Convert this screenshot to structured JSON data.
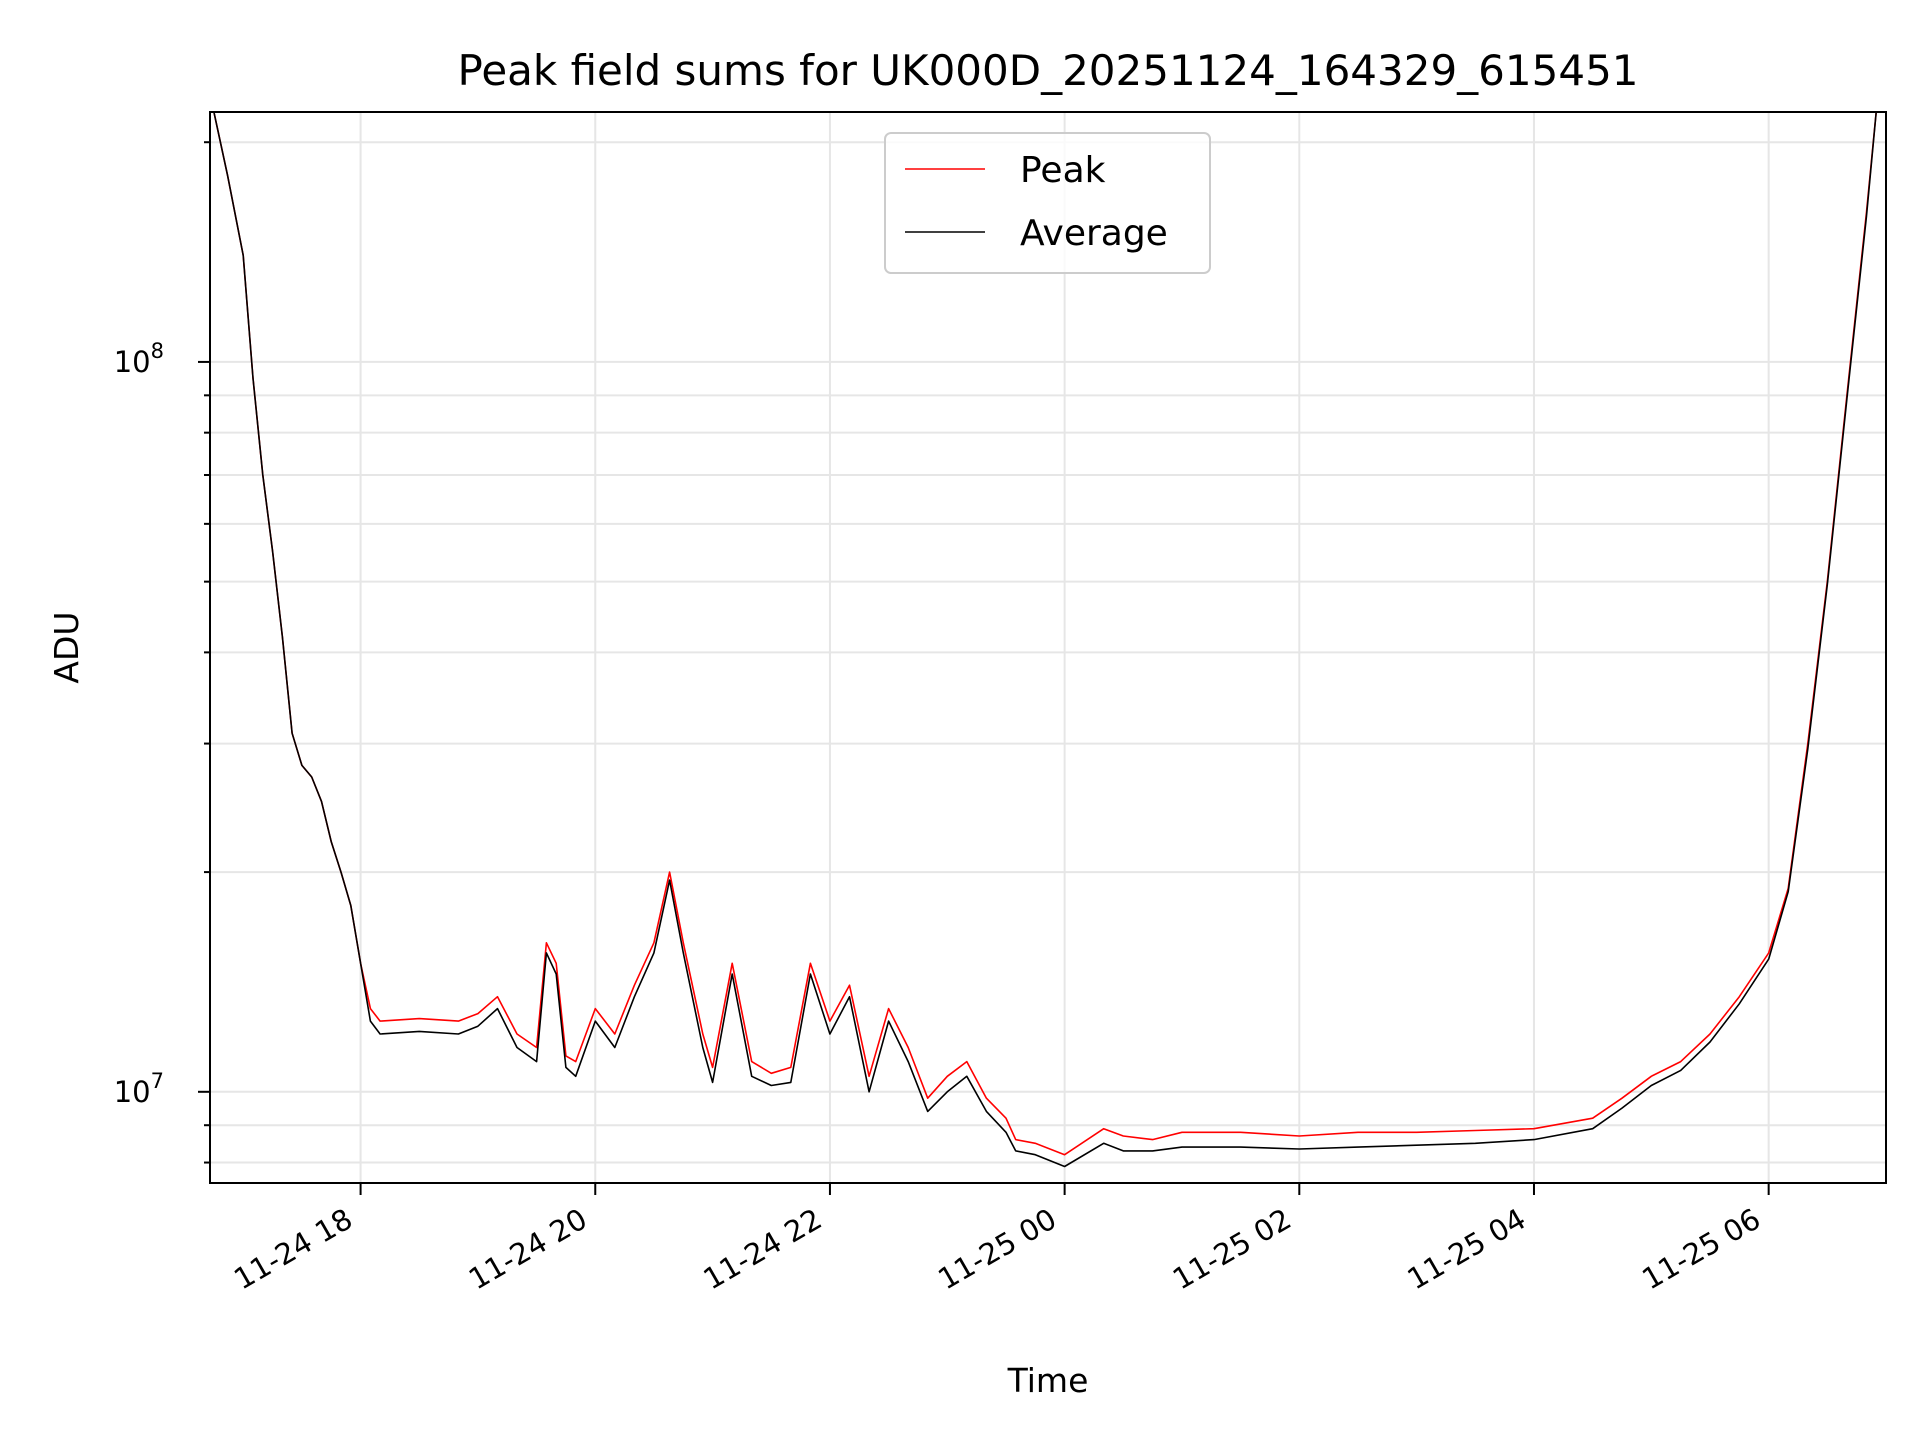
{
  "chart_data": {
    "type": "line",
    "title": "Peak field sums for UK000D_20251124_164329_615451",
    "xlabel": "Time",
    "ylabel": "ADU",
    "yscale": "log",
    "xlim": [
      "2025-11-24 16:43",
      "2025-11-25 07:00"
    ],
    "ylim": [
      7500000,
      220000000
    ],
    "grid": true,
    "legend": "upper-center",
    "x_ticks": [
      "11-24 18",
      "11-24 20",
      "11-24 22",
      "11-25 00",
      "11-25 02",
      "11-25 04",
      "11-25 06"
    ],
    "y_ticks": [
      {
        "base": "10",
        "exp": "7",
        "value": 10000000
      },
      {
        "base": "10",
        "exp": "8",
        "value": 100000000
      }
    ],
    "x": [
      "2025-11-24 16:45",
      "2025-11-24 16:52",
      "2025-11-24 17:00",
      "2025-11-24 17:05",
      "2025-11-24 17:10",
      "2025-11-24 17:15",
      "2025-11-24 17:20",
      "2025-11-24 17:25",
      "2025-11-24 17:30",
      "2025-11-24 17:35",
      "2025-11-24 17:40",
      "2025-11-24 17:45",
      "2025-11-24 17:50",
      "2025-11-24 17:55",
      "2025-11-24 18:00",
      "2025-11-24 18:05",
      "2025-11-24 18:10",
      "2025-11-24 18:30",
      "2025-11-24 18:50",
      "2025-11-24 19:00",
      "2025-11-24 19:10",
      "2025-11-24 19:20",
      "2025-11-24 19:30",
      "2025-11-24 19:35",
      "2025-11-24 19:40",
      "2025-11-24 19:45",
      "2025-11-24 19:50",
      "2025-11-24 20:00",
      "2025-11-24 20:10",
      "2025-11-24 20:20",
      "2025-11-24 20:30",
      "2025-11-24 20:38",
      "2025-11-24 20:45",
      "2025-11-24 20:55",
      "2025-11-24 21:00",
      "2025-11-24 21:10",
      "2025-11-24 21:20",
      "2025-11-24 21:30",
      "2025-11-24 21:40",
      "2025-11-24 21:50",
      "2025-11-24 22:00",
      "2025-11-24 22:10",
      "2025-11-24 22:20",
      "2025-11-24 22:30",
      "2025-11-24 22:40",
      "2025-11-24 22:50",
      "2025-11-24 23:00",
      "2025-11-24 23:10",
      "2025-11-24 23:20",
      "2025-11-24 23:30",
      "2025-11-24 23:35",
      "2025-11-24 23:45",
      "2025-11-25 00:00",
      "2025-11-25 00:20",
      "2025-11-25 00:30",
      "2025-11-25 00:45",
      "2025-11-25 01:00",
      "2025-11-25 01:30",
      "2025-11-25 02:00",
      "2025-11-25 02:30",
      "2025-11-25 03:00",
      "2025-11-25 03:30",
      "2025-11-25 04:00",
      "2025-11-25 04:30",
      "2025-11-25 04:45",
      "2025-11-25 05:00",
      "2025-11-25 05:15",
      "2025-11-25 05:30",
      "2025-11-25 05:45",
      "2025-11-25 06:00",
      "2025-11-25 06:10",
      "2025-11-25 06:20",
      "2025-11-25 06:30",
      "2025-11-25 06:40",
      "2025-11-25 06:50",
      "2025-11-25 06:55"
    ],
    "series": [
      {
        "name": "Peak",
        "color": "#ff0000",
        "values": [
          220000000,
          180000000,
          140000000,
          95000000,
          70000000,
          55000000,
          42000000,
          31000000,
          28000000,
          27000000,
          25000000,
          22000000,
          20000000,
          18000000,
          15000000,
          13000000,
          12500000,
          12600000,
          12500000,
          12800000,
          13500000,
          12000000,
          11500000,
          16000000,
          15000000,
          11200000,
          11000000,
          13000000,
          12000000,
          14000000,
          16000000,
          20000000,
          16000000,
          12000000,
          10800000,
          15000000,
          11000000,
          10600000,
          10800000,
          15000000,
          12500000,
          14000000,
          10500000,
          13000000,
          11500000,
          9800000,
          10500000,
          11000000,
          9800000,
          9200000,
          8600000,
          8500000,
          8200000,
          8900000,
          8700000,
          8600000,
          8800000,
          8800000,
          8700000,
          8800000,
          8800000,
          8850000,
          8900000,
          9200000,
          9800000,
          10500000,
          11000000,
          12000000,
          13500000,
          15500000,
          19000000,
          30000000,
          50000000,
          90000000,
          160000000,
          220000000
        ]
      },
      {
        "name": "Average",
        "color": "#000000",
        "values": [
          220000000,
          180000000,
          140000000,
          95000000,
          70000000,
          55000000,
          42000000,
          31000000,
          28000000,
          27000000,
          25000000,
          22000000,
          20000000,
          18000000,
          15000000,
          12500000,
          12000000,
          12100000,
          12000000,
          12300000,
          13000000,
          11500000,
          11000000,
          15500000,
          14500000,
          10800000,
          10500000,
          12500000,
          11500000,
          13500000,
          15500000,
          19500000,
          15500000,
          11500000,
          10300000,
          14500000,
          10500000,
          10200000,
          10300000,
          14500000,
          12000000,
          13500000,
          10000000,
          12500000,
          11000000,
          9400000,
          10000000,
          10500000,
          9400000,
          8800000,
          8300000,
          8200000,
          7900000,
          8500000,
          8300000,
          8300000,
          8400000,
          8400000,
          8350000,
          8400000,
          8450000,
          8500000,
          8600000,
          8900000,
          9500000,
          10200000,
          10700000,
          11700000,
          13200000,
          15200000,
          18800000,
          29500000,
          49500000,
          89000000,
          158000000,
          220000000
        ]
      }
    ]
  }
}
